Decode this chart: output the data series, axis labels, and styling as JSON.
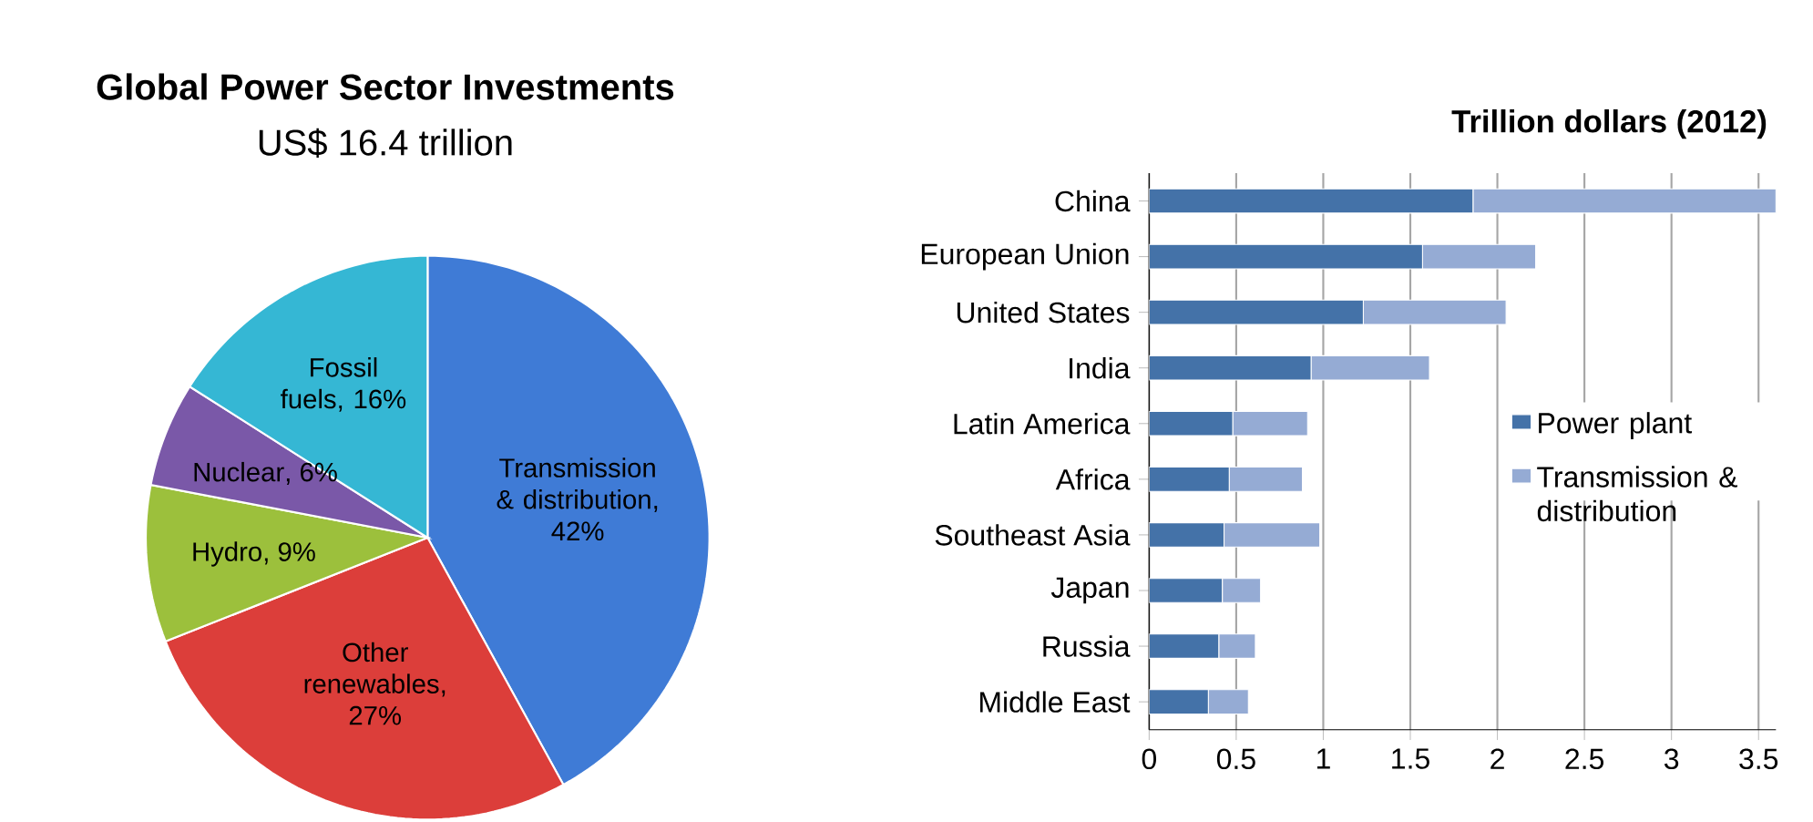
{
  "chart_data": [
    {
      "type": "pie",
      "title": "Global Power Sector Investments",
      "subtitle": "US$ 16.4 trillion",
      "categories": [
        "Transmission & distribution",
        "Other renewables",
        "Hydro",
        "Nuclear",
        "Fossil fuels"
      ],
      "values": [
        42,
        27,
        9,
        6,
        16
      ],
      "value_labels": [
        ", 42%",
        ", 27%",
        ", 9%",
        ", 6%",
        ", 16%"
      ],
      "colors": [
        "#3f7bd6",
        "#dc3e3a",
        "#9cc03c",
        "#7a58a8",
        "#35b7d4"
      ]
    },
    {
      "type": "bar",
      "orientation": "horizontal",
      "stacked": true,
      "title": "Trillion dollars (2012)",
      "categories": [
        "China",
        "European Union",
        "United States",
        "India",
        "Latin America",
        "Africa",
        "Southeast Asia",
        "Japan",
        "Russia",
        "Middle East"
      ],
      "series": [
        {
          "name": "Power plant",
          "color": "#4472a8",
          "values": [
            1.86,
            1.57,
            1.23,
            0.93,
            0.48,
            0.46,
            0.43,
            0.42,
            0.4,
            0.34
          ]
        },
        {
          "name": "Transmission & distribution",
          "color": "#95abd4",
          "values": [
            1.74,
            0.65,
            0.82,
            0.68,
            0.43,
            0.42,
            0.55,
            0.22,
            0.21,
            0.23
          ]
        }
      ],
      "xlim": [
        0,
        3.6
      ],
      "xticks": [
        0,
        0.5,
        1,
        1.5,
        2,
        2.5,
        3,
        3.5
      ],
      "grid": "x",
      "legend": "right"
    }
  ]
}
